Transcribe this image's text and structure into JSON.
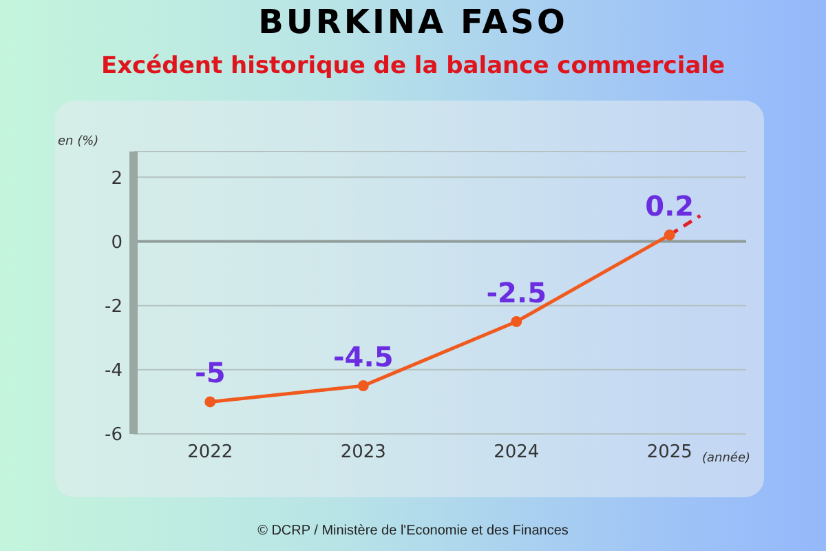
{
  "chart_data": {
    "type": "line",
    "title": "BURKINA FASO",
    "subtitle": "Excédent historique de la balance commerciale",
    "ylabel": "en (%)",
    "xlabel": "(année)",
    "x": [
      2022,
      2023,
      2024,
      2025
    ],
    "series": [
      {
        "color": "#f05a1e",
        "values": [
          -5,
          -4.5,
          -2.5,
          0.2
        ],
        "value_labels": [
          "-5",
          "-4.5",
          "-2.5",
          "0.2"
        ],
        "marker": "circle",
        "line_style": "solid"
      },
      {
        "type": "line",
        "x": [
          2025,
          2025.2
        ],
        "color": "#e0202a",
        "values": [
          0.2,
          0.8
        ],
        "marker": "none",
        "line_style": "dashed"
      }
    ],
    "xlim": [
      2021.5,
      2025.5
    ],
    "xticks": [
      2022,
      2023,
      2024,
      2025
    ],
    "ylim": [
      -6,
      2.8
    ],
    "yticks": [
      -6,
      -4,
      -2,
      0,
      2
    ],
    "ref_lines": [
      {
        "axis": "y",
        "value": 0,
        "color": "#8f9c9a"
      }
    ],
    "grid": "y",
    "annotations": [
      "© DCRP / Ministère de l'Economie et des Finances"
    ]
  }
}
